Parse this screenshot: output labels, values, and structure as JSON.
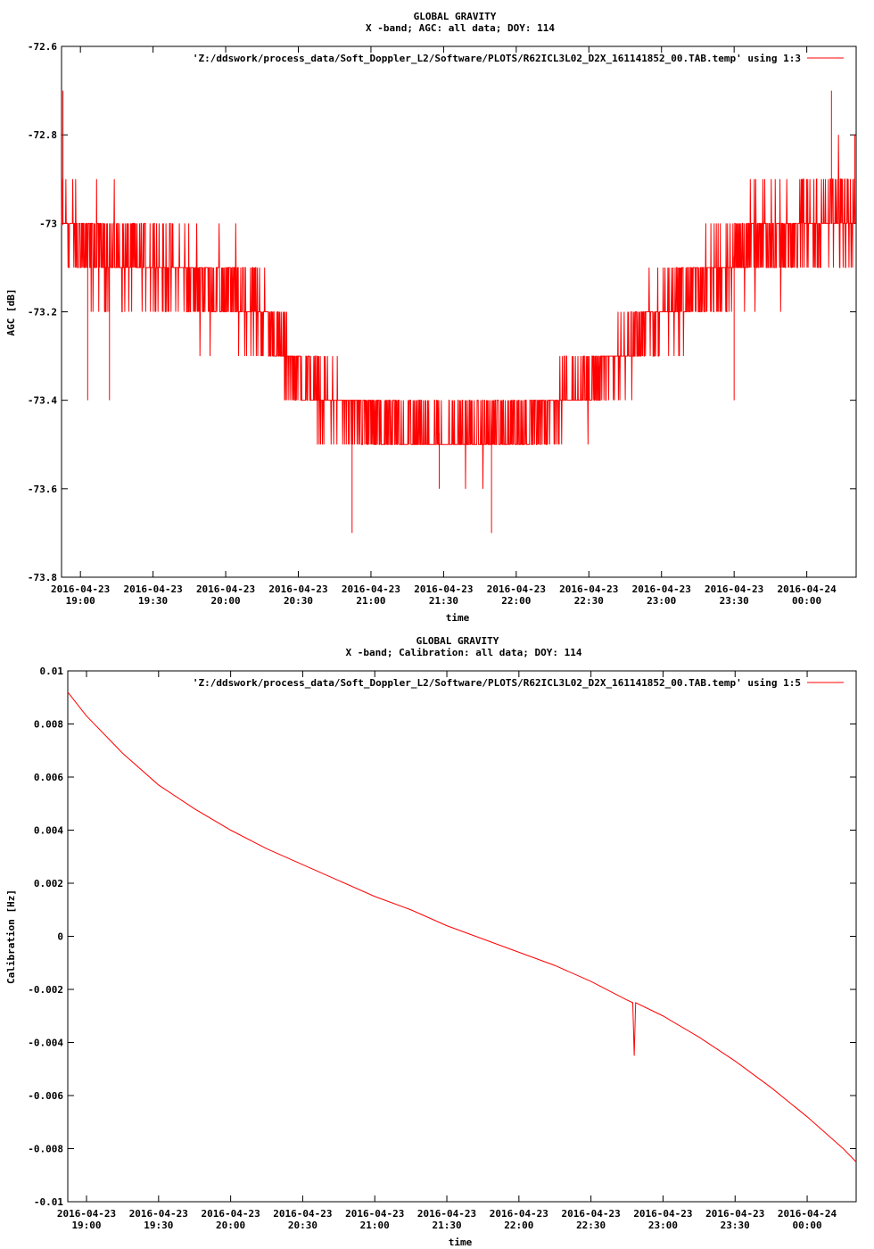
{
  "chart_data": [
    {
      "type": "line",
      "title": "GLOBAL GRAVITY",
      "subtitle": "X -band; AGC: all data; DOY: 114",
      "xlabel": "time",
      "ylabel": "AGC [dB]",
      "legend": "'Z:/ddswork/process_data/Soft_Doppler_L2/Software/PLOTS/R62ICL3L02_D2X_161141852_00.TAB.temp' using 1:3",
      "legend_position": "top-right",
      "color": "#ff0000",
      "grid": false,
      "xlim": [
        18.87,
        24.34
      ],
      "ylim": [
        -73.8,
        -72.6
      ],
      "yticks": [
        {
          "v": -72.6,
          "label": "-72.6"
        },
        {
          "v": -72.8,
          "label": "-72.8"
        },
        {
          "v": -73.0,
          "label": "-73"
        },
        {
          "v": -73.2,
          "label": "-73.2"
        },
        {
          "v": -73.4,
          "label": "-73.4"
        },
        {
          "v": -73.6,
          "label": "-73.6"
        },
        {
          "v": -73.8,
          "label": "-73.8"
        }
      ],
      "xticks": [
        {
          "v": 19.0,
          "date": "2016-04-23",
          "time": "19:00"
        },
        {
          "v": 19.5,
          "date": "2016-04-23",
          "time": "19:30"
        },
        {
          "v": 20.0,
          "date": "2016-04-23",
          "time": "20:00"
        },
        {
          "v": 20.5,
          "date": "2016-04-23",
          "time": "20:30"
        },
        {
          "v": 21.0,
          "date": "2016-04-23",
          "time": "21:00"
        },
        {
          "v": 21.5,
          "date": "2016-04-23",
          "time": "21:30"
        },
        {
          "v": 22.0,
          "date": "2016-04-23",
          "time": "22:00"
        },
        {
          "v": 22.5,
          "date": "2016-04-23",
          "time": "22:30"
        },
        {
          "v": 23.0,
          "date": "2016-04-23",
          "time": "23:00"
        },
        {
          "v": 23.5,
          "date": "2016-04-23",
          "time": "23:30"
        },
        {
          "v": 24.0,
          "date": "2016-04-24",
          "time": "00:00"
        }
      ],
      "envelope": {
        "x": [
          18.87,
          19.0,
          19.3,
          19.6,
          19.8,
          20.0,
          20.2,
          20.4,
          20.6,
          20.8,
          21.0,
          21.2,
          21.4,
          21.6,
          21.8,
          22.0,
          22.2,
          22.4,
          22.6,
          22.8,
          23.0,
          23.2,
          23.4,
          23.6,
          23.8,
          24.0,
          24.2,
          24.34
        ],
        "center": [
          -73.0,
          -73.05,
          -73.08,
          -73.1,
          -73.13,
          -73.15,
          -73.18,
          -73.3,
          -73.38,
          -73.42,
          -73.45,
          -73.47,
          -73.47,
          -73.48,
          -73.47,
          -73.45,
          -73.43,
          -73.38,
          -73.33,
          -73.27,
          -73.2,
          -73.15,
          -73.1,
          -73.05,
          -73.03,
          -73.0,
          -72.98,
          -72.95
        ],
        "spread": [
          0.12,
          0.12,
          0.11,
          0.11,
          0.1,
          0.1,
          0.1,
          0.09,
          0.08,
          0.08,
          0.08,
          0.08,
          0.08,
          0.08,
          0.08,
          0.08,
          0.08,
          0.08,
          0.08,
          0.09,
          0.1,
          0.1,
          0.11,
          0.11,
          0.12,
          0.12,
          0.12,
          0.12
        ],
        "step": 0.1
      },
      "outliers": [
        {
          "x": 18.88,
          "y": -72.7
        },
        {
          "x": 19.05,
          "y": -73.4
        },
        {
          "x": 19.2,
          "y": -73.4
        },
        {
          "x": 20.87,
          "y": -73.7
        },
        {
          "x": 21.47,
          "y": -73.6
        },
        {
          "x": 21.83,
          "y": -73.7
        },
        {
          "x": 23.5,
          "y": -73.4
        },
        {
          "x": 24.17,
          "y": -72.7
        },
        {
          "x": 24.33,
          "y": -72.8
        }
      ]
    },
    {
      "type": "line",
      "title": "GLOBAL GRAVITY",
      "subtitle": "X -band; Calibration: all data; DOY: 114",
      "xlabel": "time",
      "ylabel": "Calibration [Hz]",
      "legend": "'Z:/ddswork/process_data/Soft_Doppler_L2/Software/PLOTS/R62ICL3L02_D2X_161141852_00.TAB.temp' using 1:5",
      "legend_position": "top-right",
      "color": "#ff0000",
      "grid": false,
      "xlim": [
        18.87,
        24.34
      ],
      "ylim": [
        -0.01,
        0.01
      ],
      "yticks": [
        {
          "v": 0.01,
          "label": "0.01"
        },
        {
          "v": 0.008,
          "label": "0.008"
        },
        {
          "v": 0.006,
          "label": "0.006"
        },
        {
          "v": 0.004,
          "label": "0.004"
        },
        {
          "v": 0.002,
          "label": "0.002"
        },
        {
          "v": 0.0,
          "label": "0"
        },
        {
          "v": -0.002,
          "label": "-0.002"
        },
        {
          "v": -0.004,
          "label": "-0.004"
        },
        {
          "v": -0.006,
          "label": "-0.006"
        },
        {
          "v": -0.008,
          "label": "-0.008"
        },
        {
          "v": -0.01,
          "label": "-0.01"
        }
      ],
      "xticks": [
        {
          "v": 19.0,
          "date": "2016-04-23",
          "time": "19:00"
        },
        {
          "v": 19.5,
          "date": "2016-04-23",
          "time": "19:30"
        },
        {
          "v": 20.0,
          "date": "2016-04-23",
          "time": "20:00"
        },
        {
          "v": 20.5,
          "date": "2016-04-23",
          "time": "20:30"
        },
        {
          "v": 21.0,
          "date": "2016-04-23",
          "time": "21:00"
        },
        {
          "v": 21.5,
          "date": "2016-04-23",
          "time": "21:30"
        },
        {
          "v": 22.0,
          "date": "2016-04-23",
          "time": "22:00"
        },
        {
          "v": 22.5,
          "date": "2016-04-23",
          "time": "22:30"
        },
        {
          "v": 23.0,
          "date": "2016-04-23",
          "time": "23:00"
        },
        {
          "v": 23.5,
          "date": "2016-04-23",
          "time": "23:30"
        },
        {
          "v": 24.0,
          "date": "2016-04-24",
          "time": "00:00"
        }
      ],
      "x": [
        18.87,
        19.0,
        19.25,
        19.5,
        19.75,
        20.0,
        20.25,
        20.5,
        20.75,
        21.0,
        21.25,
        21.5,
        21.75,
        22.0,
        22.25,
        22.5,
        22.75,
        22.79,
        22.8,
        22.81,
        23.0,
        23.25,
        23.5,
        23.75,
        24.0,
        24.25,
        24.34
      ],
      "y": [
        0.0092,
        0.0083,
        0.0069,
        0.0057,
        0.0048,
        0.004,
        0.0033,
        0.0027,
        0.0021,
        0.0015,
        0.001,
        0.0004,
        -0.0001,
        -0.0006,
        -0.0011,
        -0.0017,
        -0.0024,
        -0.0025,
        -0.0045,
        -0.0025,
        -0.003,
        -0.0038,
        -0.0047,
        -0.0057,
        -0.0068,
        -0.008,
        -0.0085
      ]
    }
  ]
}
